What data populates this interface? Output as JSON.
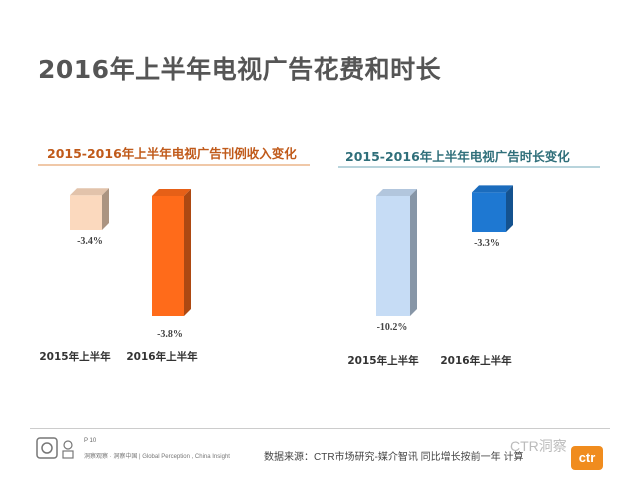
{
  "page": {
    "title": "2016年上半年电视广告花费和时长"
  },
  "chart_data": [
    {
      "type": "bar",
      "title": "2015-2016年上半年电视广告刊例收入变化",
      "categories": [
        "2015年上半年",
        "2016年上半年"
      ],
      "values": [
        -3.4,
        -3.8
      ],
      "data_labels": [
        "-3.4%",
        "-3.8%"
      ],
      "colors": [
        "#fbd9be",
        "#ff6b1a"
      ],
      "relative_heights": [
        0.29,
        1.0
      ],
      "xlabel": "",
      "ylabel": ""
    },
    {
      "type": "bar",
      "title": "2015-2016年上半年电视广告时长变化",
      "categories": [
        "2015年上半年",
        "2016年上半年"
      ],
      "values": [
        -10.2,
        -3.3
      ],
      "data_labels": [
        "-10.2%",
        "-3.3%"
      ],
      "colors": [
        "#c6dcf5",
        "#1e78d2"
      ],
      "relative_heights": [
        1.0,
        0.33
      ],
      "xlabel": "",
      "ylabel": ""
    }
  ],
  "footer": {
    "page_number": "P 10",
    "tagline": "洞察观察 · 洞察中国 | Global Perception , China Insight",
    "source": "数据来源：CTR市场研究-媒介智讯   同比增长按前一年     计算",
    "watermark": "CTR洞察",
    "logo_text": "ctr"
  }
}
